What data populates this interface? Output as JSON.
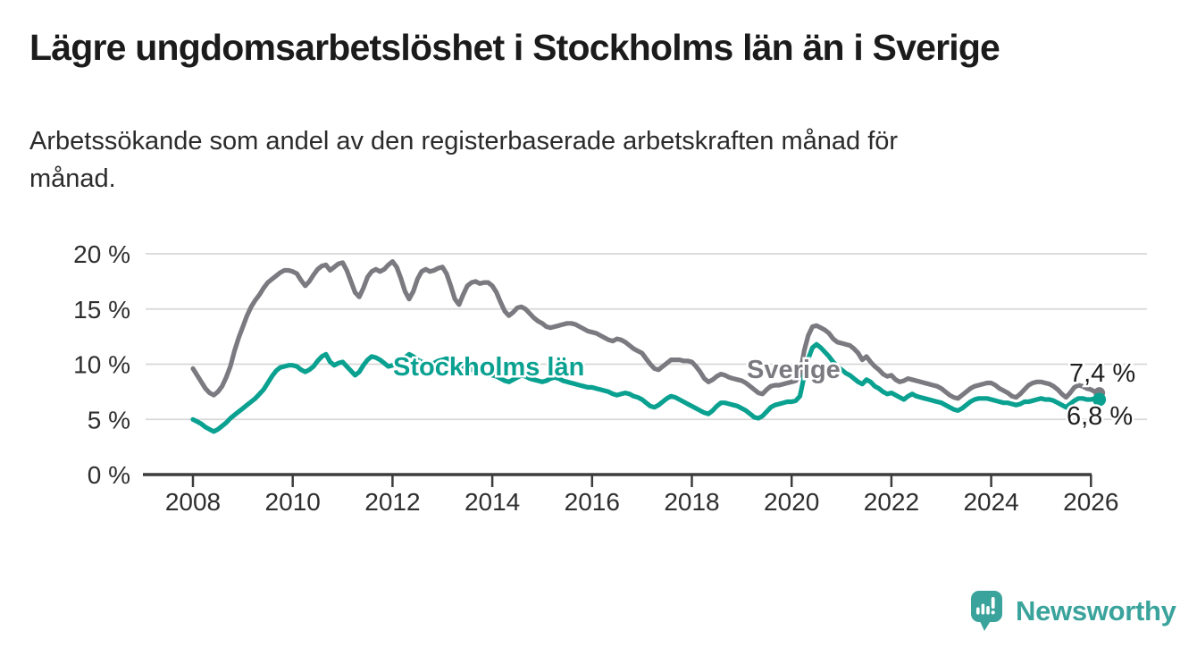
{
  "title": "Lägre ungdomsarbetslöshet i Stockholms län än i Sverige",
  "subtitle": {
    "lines": [
      "Arbetssökande som andel av den registerbaserade arbetskraften månad för",
      "månad."
    ]
  },
  "branding": {
    "name": "Newsworthy",
    "color": "#3aa39c"
  },
  "chart_data": {
    "type": "line",
    "title": "Lägre ungdomsarbetslöshet i Stockholms län än i Sverige",
    "subtitle": "Arbetssökande som andel av den registerbaserade arbetskraften månad för månad.",
    "grid": "horizontal",
    "legend_position": "inline-labels",
    "x_axis": {
      "tick_years": [
        2008,
        2010,
        2012,
        2014,
        2016,
        2018,
        2020,
        2022,
        2024,
        2026
      ]
    },
    "y_axis": {
      "ticks": [
        {
          "value": 20,
          "label": "20 %"
        },
        {
          "value": 15,
          "label": "15 %"
        },
        {
          "value": 10,
          "label": "10 %"
        },
        {
          "value": 5,
          "label": "5 %"
        },
        {
          "value": 0,
          "label": "0 %"
        }
      ],
      "lim": [
        0,
        21.5
      ]
    },
    "frequency": "monthly",
    "start_year": 2008,
    "series": [
      {
        "name": "Sverige",
        "color": "#7b7a80",
        "end_label": "7,4 %",
        "values": [
          9.6,
          9.0,
          8.4,
          7.8,
          7.4,
          7.2,
          7.5,
          8.0,
          8.8,
          9.8,
          11.2,
          12.4,
          13.4,
          14.4,
          15.2,
          15.8,
          16.3,
          16.9,
          17.4,
          17.7,
          18.0,
          18.3,
          18.5,
          18.5,
          18.4,
          18.2,
          17.6,
          17.1,
          17.5,
          18.1,
          18.6,
          18.9,
          19.0,
          18.5,
          18.8,
          19.1,
          19.2,
          18.5,
          17.5,
          16.5,
          16.1,
          16.9,
          17.9,
          18.4,
          18.6,
          18.4,
          18.6,
          19.0,
          19.3,
          18.8,
          17.8,
          16.6,
          15.9,
          16.6,
          17.7,
          18.4,
          18.6,
          18.4,
          18.5,
          18.7,
          18.8,
          18.2,
          17.1,
          15.9,
          15.4,
          16.3,
          17.1,
          17.4,
          17.5,
          17.3,
          17.4,
          17.4,
          17.1,
          16.5,
          15.6,
          14.8,
          14.4,
          14.7,
          15.1,
          15.2,
          15.0,
          14.6,
          14.2,
          13.9,
          13.7,
          13.4,
          13.3,
          13.4,
          13.5,
          13.6,
          13.7,
          13.7,
          13.6,
          13.4,
          13.2,
          13.0,
          12.9,
          12.8,
          12.6,
          12.4,
          12.2,
          12.1,
          12.3,
          12.2,
          12.0,
          11.7,
          11.4,
          11.2,
          11.0,
          10.5,
          10.0,
          9.6,
          9.5,
          9.8,
          10.1,
          10.4,
          10.4,
          10.4,
          10.3,
          10.3,
          10.2,
          9.8,
          9.3,
          8.7,
          8.4,
          8.6,
          8.9,
          9.1,
          9.0,
          8.8,
          8.7,
          8.6,
          8.5,
          8.3,
          8.0,
          7.7,
          7.4,
          7.3,
          7.7,
          8.0,
          8.1,
          8.1,
          8.2,
          8.3,
          8.4,
          8.5,
          9.0,
          11.2,
          12.6,
          13.4,
          13.5,
          13.3,
          13.1,
          12.8,
          12.3,
          12.0,
          11.9,
          11.8,
          11.7,
          11.4,
          11.0,
          10.4,
          10.7,
          10.2,
          9.8,
          9.5,
          9.1,
          8.9,
          9.0,
          8.6,
          8.4,
          8.5,
          8.7,
          8.6,
          8.5,
          8.4,
          8.3,
          8.2,
          8.1,
          8.0,
          7.8,
          7.5,
          7.2,
          7.0,
          6.9,
          7.2,
          7.5,
          7.8,
          8.0,
          8.1,
          8.2,
          8.3,
          8.3,
          8.1,
          7.8,
          7.6,
          7.4,
          7.1,
          7.0,
          7.3,
          7.7,
          8.1,
          8.3,
          8.4,
          8.4,
          8.3,
          8.2,
          8.0,
          7.7,
          7.3,
          7.0,
          7.4,
          7.9,
          8.1,
          8.0,
          7.8,
          7.7,
          7.5,
          7.4
        ]
      },
      {
        "name": "Stockholms län",
        "color": "#0aa191",
        "end_label": "6,8 %",
        "values": [
          5.0,
          4.8,
          4.6,
          4.3,
          4.1,
          3.9,
          4.1,
          4.4,
          4.7,
          5.1,
          5.4,
          5.7,
          6.0,
          6.3,
          6.6,
          6.9,
          7.3,
          7.7,
          8.3,
          8.9,
          9.4,
          9.7,
          9.8,
          9.9,
          9.9,
          9.8,
          9.5,
          9.3,
          9.5,
          9.8,
          10.3,
          10.7,
          10.9,
          10.2,
          9.9,
          10.1,
          10.2,
          9.8,
          9.4,
          9.0,
          9.3,
          9.9,
          10.4,
          10.7,
          10.6,
          10.4,
          10.1,
          9.8,
          9.9,
          10.1,
          10.3,
          10.6,
          10.9,
          10.7,
          10.4,
          10.2,
          10.1,
          10.0,
          10.1,
          10.3,
          10.4,
          10.5,
          10.4,
          10.2,
          10.0,
          9.8,
          9.7,
          9.5,
          9.4,
          9.3,
          9.2,
          9.1,
          9.0,
          8.9,
          8.7,
          8.5,
          8.4,
          8.6,
          8.8,
          9.0,
          8.9,
          8.7,
          8.6,
          8.5,
          8.4,
          8.5,
          8.7,
          8.8,
          8.7,
          8.5,
          8.4,
          8.3,
          8.2,
          8.1,
          8.0,
          7.9,
          7.9,
          7.8,
          7.7,
          7.6,
          7.5,
          7.3,
          7.2,
          7.3,
          7.4,
          7.3,
          7.1,
          7.0,
          6.8,
          6.5,
          6.2,
          6.1,
          6.3,
          6.6,
          6.9,
          7.1,
          7.0,
          6.8,
          6.6,
          6.4,
          6.2,
          6.0,
          5.8,
          5.6,
          5.5,
          5.8,
          6.2,
          6.5,
          6.5,
          6.4,
          6.3,
          6.2,
          6.0,
          5.8,
          5.5,
          5.2,
          5.1,
          5.3,
          5.7,
          6.1,
          6.3,
          6.4,
          6.5,
          6.6,
          6.6,
          6.7,
          7.1,
          8.9,
          10.5,
          11.5,
          11.8,
          11.5,
          11.1,
          10.7,
          10.2,
          9.8,
          9.5,
          9.2,
          9.0,
          8.7,
          8.4,
          8.2,
          8.6,
          8.4,
          8.0,
          7.8,
          7.5,
          7.3,
          7.4,
          7.2,
          7.0,
          6.8,
          7.1,
          7.3,
          7.1,
          7.0,
          6.9,
          6.8,
          6.7,
          6.6,
          6.5,
          6.3,
          6.1,
          5.9,
          5.8,
          6.0,
          6.3,
          6.6,
          6.8,
          6.9,
          6.9,
          6.9,
          6.8,
          6.7,
          6.6,
          6.5,
          6.5,
          6.4,
          6.3,
          6.4,
          6.6,
          6.6,
          6.7,
          6.8,
          6.9,
          6.8,
          6.8,
          6.7,
          6.5,
          6.3,
          6.1,
          6.4,
          6.7,
          6.9,
          6.9,
          6.8,
          6.8,
          6.9,
          6.8
        ]
      }
    ]
  }
}
